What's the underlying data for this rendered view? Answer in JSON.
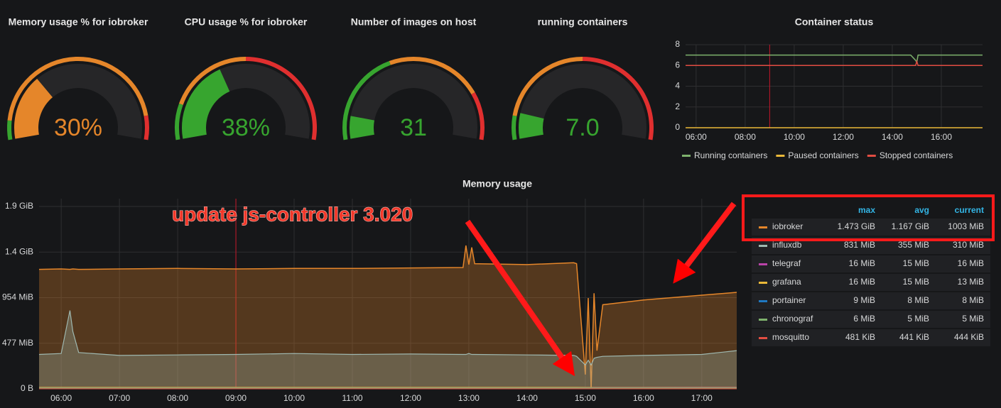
{
  "chart_data": [
    {
      "type": "gauge",
      "title": "Memory usage % for iobroker",
      "values": [
        30
      ],
      "value_labels": [
        "30%"
      ],
      "color": "#e5862a",
      "ylim": [
        0,
        100
      ],
      "bands": [
        {
          "to": 8,
          "color": "#37a52f"
        },
        {
          "to": 90,
          "color": "#e5862a"
        },
        {
          "to": 100,
          "color": "#e02f2f"
        }
      ]
    },
    {
      "type": "gauge",
      "title": "CPU usage % for iobroker",
      "values": [
        38
      ],
      "value_labels": [
        "38%"
      ],
      "color": "#37a52f",
      "ylim": [
        0,
        100
      ],
      "bands": [
        {
          "to": 15,
          "color": "#37a52f"
        },
        {
          "to": 50,
          "color": "#e5862a"
        },
        {
          "to": 100,
          "color": "#e02f2f"
        }
      ]
    },
    {
      "type": "gauge",
      "title": "Number of images on host",
      "values": [
        31
      ],
      "color": "#37a52f",
      "ylim": [
        0,
        300
      ],
      "bands": [
        {
          "to": 120,
          "color": "#37a52f"
        },
        {
          "to": 240,
          "color": "#e5862a"
        },
        {
          "to": 300,
          "color": "#e02f2f"
        }
      ]
    },
    {
      "type": "gauge",
      "title": "running containers",
      "values": [
        7
      ],
      "value_labels": [
        "7.0"
      ],
      "color": "#37a52f",
      "ylim": [
        0,
        60
      ],
      "bands": [
        {
          "to": 6,
          "color": "#37a52f"
        },
        {
          "to": 30,
          "color": "#e5862a"
        },
        {
          "to": 60,
          "color": "#e02f2f"
        }
      ]
    },
    {
      "type": "line",
      "title": "Container status",
      "x": [
        5.57,
        14.75,
        14.95,
        15.0,
        15.05,
        17.68
      ],
      "xlim": [
        5.57,
        17.68
      ],
      "xticks": [
        {
          "value": 6,
          "label": "06:00"
        },
        {
          "value": 8,
          "label": "08:00"
        },
        {
          "value": 10,
          "label": "10:00"
        },
        {
          "value": 12,
          "label": "12:00"
        },
        {
          "value": 14,
          "label": "14:00"
        },
        {
          "value": 16,
          "label": "16:00"
        }
      ],
      "ylim": [
        0,
        8
      ],
      "yticks": [
        0,
        2,
        4,
        6,
        8
      ],
      "grid": true,
      "marker_x": 9,
      "series": [
        {
          "name": "Running containers",
          "color": "#7eb26d",
          "values": [
            7,
            7,
            6.5,
            6.3,
            7,
            7
          ]
        },
        {
          "name": "Paused containers",
          "color": "#eab839",
          "values": [
            0,
            0,
            0,
            0,
            0,
            0
          ]
        },
        {
          "name": "Stopped containers",
          "color": "#e24d42",
          "values": [
            6,
            6,
            6,
            6.4,
            6,
            6
          ]
        }
      ]
    },
    {
      "type": "area",
      "title": "Memory usage",
      "annotation": "update js-controller 3.020",
      "x": [
        5.62,
        6.0,
        6.15,
        6.2,
        6.3,
        7,
        8,
        9,
        10,
        11,
        12,
        12.9,
        12.95,
        13.0,
        13.05,
        13.1,
        14,
        14.8,
        14.85,
        15.0,
        15.05,
        15.1,
        15.15,
        15.2,
        15.3,
        16,
        17,
        17.6
      ],
      "xlim": [
        5.62,
        17.6
      ],
      "xticks": [
        {
          "value": 6,
          "label": "06:00"
        },
        {
          "value": 7,
          "label": "07:00"
        },
        {
          "value": 8,
          "label": "08:00"
        },
        {
          "value": 9,
          "label": "09:00"
        },
        {
          "value": 10,
          "label": "10:00"
        },
        {
          "value": 11,
          "label": "11:00"
        },
        {
          "value": 12,
          "label": "12:00"
        },
        {
          "value": 13,
          "label": "13:00"
        },
        {
          "value": 14,
          "label": "14:00"
        },
        {
          "value": 15,
          "label": "15:00"
        },
        {
          "value": 16,
          "label": "16:00"
        },
        {
          "value": 17,
          "label": "17:00"
        }
      ],
      "ylim": [
        0,
        1990
      ],
      "yticks": [
        {
          "value": 0,
          "label": "0 B"
        },
        {
          "value": 477,
          "label": "477 MiB"
        },
        {
          "value": 954,
          "label": "954 MiB"
        },
        {
          "value": 1431,
          "label": "1.4 GiB"
        },
        {
          "value": 1908,
          "label": "1.9 GiB"
        }
      ],
      "grid": true,
      "marker_x": 9,
      "legend_columns": [
        "max",
        "avg",
        "current"
      ],
      "series": [
        {
          "name": "iobroker",
          "color": "#e5862a",
          "legend_values": [
            "1.473 GiB",
            "1.167 GiB",
            "1003 MiB"
          ],
          "values": [
            1250,
            1255,
            1250,
            1255,
            1250,
            1255,
            1260,
            1255,
            1260,
            1260,
            1265,
            1270,
            1500,
            1300,
            1480,
            1310,
            1300,
            1320,
            1310,
            150,
            950,
            0,
            1000,
            400,
            880,
            930,
            980,
            1010
          ]
        },
        {
          "name": "influxdb",
          "color": "#9fb8b0",
          "legend_values": [
            "831 MiB",
            "355 MiB",
            "310 MiB"
          ],
          "values": [
            360,
            370,
            820,
            600,
            380,
            350,
            355,
            360,
            370,
            360,
            365,
            360,
            360,
            370,
            360,
            360,
            355,
            350,
            340,
            250,
            300,
            250,
            320,
            330,
            340,
            350,
            360,
            400
          ]
        },
        {
          "name": "telegraf",
          "color": "#ba43a9",
          "legend_values": [
            "16 MiB",
            "15 MiB",
            "16 MiB"
          ],
          "values": [
            15,
            15,
            15,
            15,
            15,
            15,
            15,
            15,
            15,
            15,
            15,
            15,
            15,
            15,
            15,
            15,
            15,
            15,
            15,
            15,
            15,
            15,
            15,
            15,
            15,
            15,
            16,
            16
          ]
        },
        {
          "name": "grafana",
          "color": "#eab839",
          "legend_values": [
            "16 MiB",
            "15 MiB",
            "13 MiB"
          ],
          "values": [
            15,
            15,
            15,
            15,
            15,
            15,
            15,
            15,
            15,
            15,
            15,
            15,
            15,
            15,
            15,
            15,
            15,
            15,
            15,
            14,
            14,
            14,
            13,
            13,
            13,
            13,
            13,
            13
          ]
        },
        {
          "name": "portainer",
          "color": "#1f78c1",
          "legend_values": [
            "9 MiB",
            "8 MiB",
            "8 MiB"
          ],
          "values": [
            8,
            8,
            8,
            8,
            8,
            8,
            8,
            8,
            8,
            8,
            8,
            8,
            8,
            8,
            8,
            8,
            8,
            8,
            8,
            8,
            8,
            8,
            8,
            8,
            8,
            8,
            8,
            8
          ]
        },
        {
          "name": "chronograf",
          "color": "#7eb26d",
          "legend_values": [
            "6 MiB",
            "5 MiB",
            "5 MiB"
          ],
          "values": [
            5,
            5,
            5,
            5,
            5,
            5,
            5,
            5,
            5,
            5,
            5,
            5,
            5,
            5,
            5,
            5,
            5,
            5,
            5,
            5,
            5,
            5,
            5,
            5,
            5,
            5,
            5,
            5
          ]
        },
        {
          "name": "mosquitto",
          "color": "#e24d42",
          "legend_values": [
            "481 KiB",
            "441 KiB",
            "444 KiB"
          ],
          "values": [
            0.44,
            0.44,
            0.44,
            0.44,
            0.44,
            0.44,
            0.44,
            0.44,
            0.44,
            0.44,
            0.44,
            0.44,
            0.44,
            0.44,
            0.44,
            0.44,
            0.44,
            0.44,
            0.44,
            0.44,
            0.44,
            0.44,
            0.44,
            0.44,
            0.44,
            0.44,
            0.44,
            0.44
          ]
        }
      ]
    }
  ]
}
